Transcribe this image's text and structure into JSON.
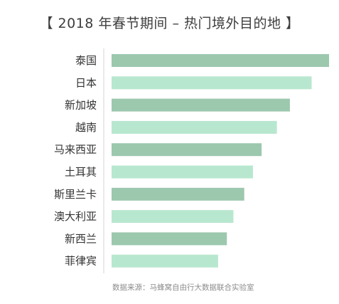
{
  "chart_data": {
    "type": "bar",
    "orientation": "horizontal",
    "title": "【 2018 年春节期间 – 热门境外目的地 】",
    "categories": [
      "泰国",
      "日本",
      "新加坡",
      "越南",
      "马来西亚",
      "土耳其",
      "斯里兰卡",
      "澳大利亚",
      "新西兰",
      "菲律宾"
    ],
    "values": [
      100,
      92,
      82,
      76,
      69,
      65,
      61,
      56,
      53,
      49
    ],
    "xlim": [
      0,
      100
    ],
    "grid": false,
    "legend": "none",
    "colors": {
      "dark": "#9cc8ae",
      "light": "#b8e7cf",
      "axis": "#d6d6d6"
    }
  },
  "footer": {
    "source": "数据来源：马蜂窝自由行大数据联合实验室"
  }
}
